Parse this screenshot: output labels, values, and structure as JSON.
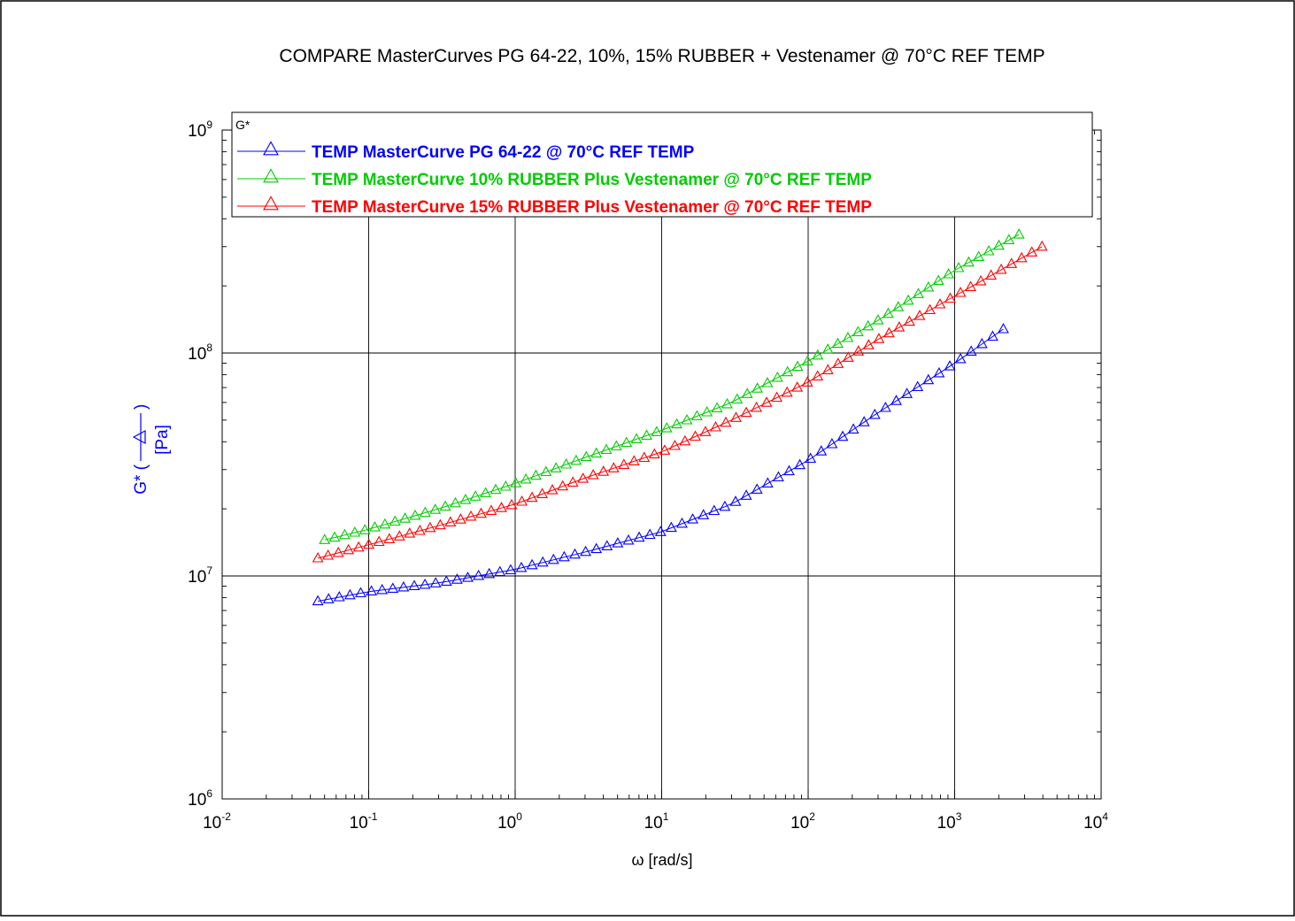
{
  "chart_data": {
    "type": "line",
    "title": "COMPARE MasterCurves PG 64-22, 10%, 15% RUBBER + Vestenamer @ 70°C REF TEMP",
    "xlabel": "ω [rad/s]",
    "ylabel": "G* (",
    "ylabel_close": ")",
    "ylabel_unit": "[Pa]",
    "xscale": "log",
    "yscale": "log",
    "xlim": [
      0.01,
      10000
    ],
    "ylim": [
      1000000,
      1000000000
    ],
    "x_ticks": [
      {
        "base": "10",
        "exp": "-2"
      },
      {
        "base": "10",
        "exp": "-1"
      },
      {
        "base": "10",
        "exp": "0"
      },
      {
        "base": "10",
        "exp": "1"
      },
      {
        "base": "10",
        "exp": "2"
      },
      {
        "base": "10",
        "exp": "3"
      },
      {
        "base": "10",
        "exp": "4"
      }
    ],
    "y_ticks": [
      {
        "base": "10",
        "exp": "6"
      },
      {
        "base": "10",
        "exp": "7"
      },
      {
        "base": "10",
        "exp": "8"
      },
      {
        "base": "10",
        "exp": "9"
      }
    ],
    "grid": true,
    "marker": "triangle-open",
    "legend": {
      "title": "G*",
      "position": "top-right",
      "entries": [
        "TEMP MasterCurve PG 64-22 @ 70°C REF TEMP",
        "TEMP MasterCurve 10% RUBBER Plus Vestenamer @ 70°C REF TEMP",
        "TEMP MasterCurve 15% RUBBER Plus Vestenamer @ 70°C REF TEMP"
      ]
    },
    "series": [
      {
        "name": "TEMP MasterCurve PG 64-22 @ 70°C REF TEMP",
        "color": "#0000ff",
        "x_range": [
          0.045,
          2150
        ],
        "points": 65,
        "anchors": [
          [
            0.045,
            7700000
          ],
          [
            0.1,
            8500000
          ],
          [
            0.3,
            9300000
          ],
          [
            1,
            10700000
          ],
          [
            3,
            12800000
          ],
          [
            10,
            15800000
          ],
          [
            30,
            21000000
          ],
          [
            100,
            33000000
          ],
          [
            300,
            54000000
          ],
          [
            1000,
            90000000
          ],
          [
            2150,
            128000000
          ]
        ]
      },
      {
        "name": "TEMP MasterCurve 10% RUBBER Plus Vestenamer @ 70°C REF TEMP",
        "color": "#00cc00",
        "x_range": [
          0.05,
          2750
        ],
        "points": 70,
        "anchors": [
          [
            0.05,
            14500000
          ],
          [
            0.1,
            16200000
          ],
          [
            0.3,
            20000000
          ],
          [
            1,
            26000000
          ],
          [
            3,
            34000000
          ],
          [
            10,
            45000000
          ],
          [
            30,
            60000000
          ],
          [
            100,
            92000000
          ],
          [
            300,
            140000000
          ],
          [
            1000,
            235000000
          ],
          [
            2750,
            340000000
          ]
        ]
      },
      {
        "name": "TEMP MasterCurve 15% RUBBER Plus Vestenamer @ 70°C REF TEMP",
        "color": "#ff0000",
        "x_range": [
          0.045,
          3950
        ],
        "points": 72,
        "anchors": [
          [
            0.045,
            12000000
          ],
          [
            0.1,
            13800000
          ],
          [
            0.3,
            16800000
          ],
          [
            1,
            21000000
          ],
          [
            3,
            27500000
          ],
          [
            10,
            36000000
          ],
          [
            30,
            50000000
          ],
          [
            100,
            74000000
          ],
          [
            300,
            115000000
          ],
          [
            1000,
            180000000
          ],
          [
            3950,
            300000000
          ]
        ]
      }
    ]
  }
}
